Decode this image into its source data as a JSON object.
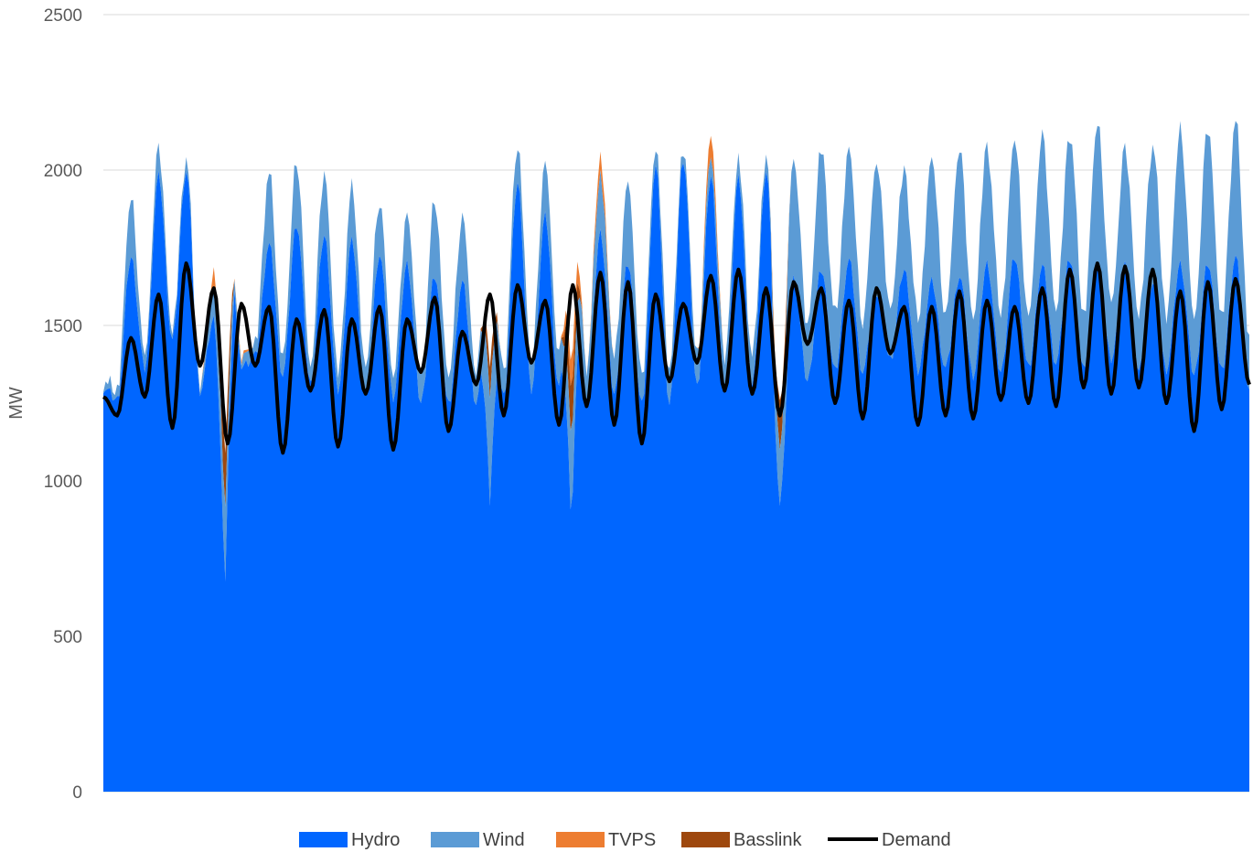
{
  "chart_data": {
    "type": "area",
    "title": "",
    "xlabel": "",
    "ylabel": "MW",
    "ylim": [
      0,
      2500
    ],
    "yticks": [
      0,
      500,
      1000,
      1500,
      2000,
      2500
    ],
    "grid": true,
    "legend_position": "bottom",
    "stacking": "stacked",
    "num_points": 84,
    "series": [
      {
        "name": "Hydro",
        "kind": "area",
        "color": "#0066FF",
        "values": [
          1300,
          1260,
          1720,
          1360,
          1980,
          1450,
          2000,
          1290,
          1520,
          1870,
          1370,
          1400,
          1760,
          1340,
          1830,
          1310,
          1790,
          1290,
          1770,
          1280,
          1730,
          1270,
          1700,
          1250,
          1660,
          1240,
          1640,
          1250,
          1680,
          1270,
          1960,
          1290,
          1850,
          1300,
          1900,
          1250,
          1800,
          1280,
          1700,
          1240,
          2010,
          1250,
          2040,
          1300,
          1980,
          1300,
          1970,
          1300,
          2000,
          1240,
          1650,
          1320,
          1680,
          1350,
          1710,
          1350,
          1610,
          1390,
          1680,
          1350,
          1640,
          1360,
          1660,
          1340,
          1700,
          1350,
          1720,
          1360,
          1690,
          1380,
          1720,
          1360,
          1690,
          1390,
          1690,
          1350,
          1640,
          1360,
          1700,
          1340,
          1700,
          1350,
          1720,
          1300
        ],
        "peak_values": [
          1650,
          1260,
          1720,
          1360,
          1980,
          1450,
          2000,
          1290,
          1950,
          1870,
          1370,
          1400,
          1760,
          1340,
          1830,
          1310,
          1790,
          1290,
          1770,
          1280,
          1730,
          1270,
          1700,
          1250,
          1660,
          1240,
          1640,
          1250,
          1680,
          1270,
          1960,
          1290,
          1850,
          1300,
          1900,
          1250,
          1800,
          1280,
          1700,
          1240,
          2010,
          1250,
          2040,
          1300,
          1980,
          1300,
          1970,
          1300,
          2000,
          1240,
          1650,
          1320,
          1680,
          1350,
          1710,
          1350,
          1610,
          1390,
          1680,
          1350,
          1640,
          1360,
          1660,
          1340,
          1700,
          1350,
          1720,
          1360,
          1690,
          1380,
          1720,
          1360,
          1690,
          1390,
          1690,
          1350,
          1640,
          1360,
          1700,
          1340,
          1700,
          1350,
          1720,
          1300
        ]
      },
      {
        "name": "Wind",
        "kind": "area",
        "color": "#5B9BD5",
        "values": [
          20,
          30,
          190,
          40,
          90,
          30,
          40,
          20,
          80,
          50,
          30,
          40,
          230,
          60,
          200,
          60,
          200,
          60,
          170,
          80,
          170,
          70,
          160,
          90,
          240,
          90,
          210,
          100,
          200,
          80,
          120,
          90,
          170,
          100,
          130,
          120,
          180,
          120,
          260,
          90,
          60,
          110,
          30,
          100,
          60,
          100,
          60,
          100,
          40,
          120,
          390,
          180,
          390,
          180,
          360,
          160,
          420,
          160,
          320,
          170,
          400,
          170,
          410,
          180,
          380,
          190,
          380,
          160,
          420,
          170,
          400,
          170,
          460,
          180,
          380,
          180,
          440,
          170,
          430,
          180,
          440,
          170,
          440,
          160
        ]
      },
      {
        "name": "TVPS",
        "kind": "area",
        "color": "#ED7D31",
        "values": [
          0,
          0,
          0,
          0,
          0,
          0,
          0,
          0,
          60,
          0,
          10,
          0,
          0,
          0,
          0,
          0,
          0,
          0,
          0,
          0,
          0,
          0,
          0,
          0,
          0,
          0,
          0,
          0,
          0,
          0,
          0,
          0,
          0,
          0,
          90,
          0,
          60,
          0,
          0,
          0,
          0,
          0,
          0,
          0,
          70,
          0,
          0,
          0,
          0,
          0,
          0,
          0,
          0,
          0,
          0,
          0,
          0,
          0,
          0,
          0,
          0,
          0,
          0,
          0,
          0,
          0,
          0,
          0,
          0,
          0,
          0,
          0,
          0,
          0,
          0,
          0,
          0,
          0,
          0,
          0,
          0,
          0,
          0,
          0
        ]
      },
      {
        "name": "Basslink",
        "kind": "area",
        "color": "#9E480E",
        "values": [
          0,
          0,
          0,
          0,
          0,
          0,
          0,
          0,
          0,
          0,
          0,
          0,
          0,
          0,
          0,
          0,
          0,
          0,
          0,
          0,
          0,
          0,
          0,
          0,
          0,
          0,
          0,
          0,
          0,
          0,
          0,
          0,
          0,
          0,
          0,
          0,
          0,
          0,
          0,
          0,
          0,
          0,
          0,
          0,
          0,
          0,
          0,
          0,
          0,
          0,
          0,
          0,
          0,
          0,
          0,
          0,
          0,
          0,
          0,
          0,
          0,
          0,
          0,
          0,
          0,
          0,
          0,
          0,
          0,
          0,
          0,
          0,
          0,
          0,
          0,
          0,
          0,
          0,
          0,
          0,
          0,
          0,
          0,
          0
        ],
        "dips": [
          {
            "index": 8.8,
            "hydro_low": 620,
            "wind_extra": 180,
            "basslink_extra": 180
          },
          {
            "index": 28.0,
            "hydro_low": 920,
            "wind_extra": 130,
            "basslink_extra": 100
          },
          {
            "index": 33.9,
            "hydro_low": 810,
            "wind_extra": 120,
            "basslink_extra": 160
          },
          {
            "index": 49.0,
            "hydro_low": 920,
            "wind_extra": 60,
            "basslink_extra": 160
          }
        ]
      },
      {
        "name": "Demand",
        "kind": "line",
        "color": "#000000",
        "values": [
          1270,
          1210,
          1460,
          1270,
          1600,
          1170,
          1700,
          1370,
          1620,
          1120,
          1570,
          1370,
          1560,
          1090,
          1520,
          1290,
          1550,
          1110,
          1520,
          1280,
          1560,
          1100,
          1520,
          1350,
          1590,
          1160,
          1480,
          1310,
          1600,
          1210,
          1630,
          1380,
          1580,
          1180,
          1630,
          1240,
          1670,
          1180,
          1640,
          1120,
          1600,
          1320,
          1570,
          1380,
          1660,
          1290,
          1680,
          1280,
          1620,
          1210,
          1640,
          1440,
          1620,
          1250,
          1580,
          1200,
          1620,
          1410,
          1560,
          1180,
          1560,
          1210,
          1610,
          1200,
          1580,
          1260,
          1560,
          1250,
          1620,
          1240,
          1680,
          1300,
          1700,
          1280,
          1690,
          1300,
          1680,
          1250,
          1610,
          1160,
          1640,
          1230,
          1650,
          1310
        ]
      }
    ]
  }
}
